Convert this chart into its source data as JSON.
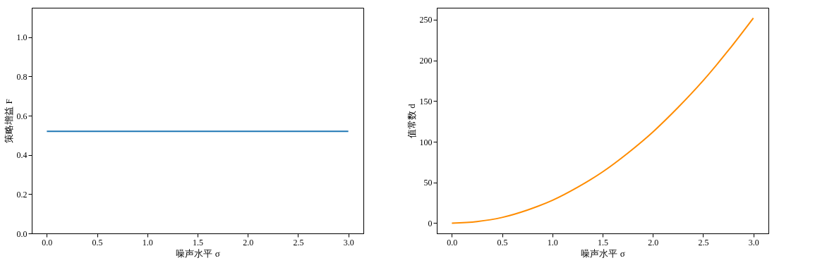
{
  "chart_data": [
    {
      "type": "line",
      "xlabel": "噪声水平 σ",
      "ylabel": "策略增益 F",
      "x": [
        0,
        0.5,
        1,
        1.5,
        2,
        2.5,
        3
      ],
      "series": [
        {
          "color": "#1f77b4",
          "values": [
            0.52,
            0.52,
            0.52,
            0.52,
            0.52,
            0.52,
            0.52
          ]
        }
      ],
      "xlim": [
        -0.15,
        3.15
      ],
      "xticks": [
        {
          "value": 0,
          "label": "0.0"
        },
        0.5,
        {
          "value": 1,
          "label": "1.0"
        },
        1.5,
        {
          "value": 2,
          "label": "2.0"
        },
        2.5,
        {
          "value": 3,
          "label": "3.0"
        }
      ],
      "ylim": [
        0,
        1.15
      ],
      "yticks": [
        {
          "value": 0,
          "label": "0.0"
        },
        0.2,
        0.4,
        0.6,
        0.8,
        {
          "value": 1,
          "label": "1.0"
        }
      ],
      "grid": false,
      "legend": false
    },
    {
      "type": "line",
      "xlabel": "噪声水平 σ",
      "ylabel": "值常数 d",
      "x": [
        0,
        0.25,
        0.5,
        0.75,
        1,
        1.25,
        1.5,
        1.75,
        2,
        2.25,
        2.5,
        2.75,
        3
      ],
      "series": [
        {
          "color": "#ff8c00",
          "values": [
            0,
            2,
            7,
            16,
            28,
            44,
            63,
            86,
            112,
            142,
            175,
            212,
            252
          ]
        }
      ],
      "xlim": [
        -0.15,
        3.15
      ],
      "xticks": [
        {
          "value": 0,
          "label": "0.0"
        },
        0.5,
        {
          "value": 1,
          "label": "1.0"
        },
        1.5,
        {
          "value": 2,
          "label": "2.0"
        },
        2.5,
        {
          "value": 3,
          "label": "3.0"
        }
      ],
      "ylim": [
        -12.6,
        264.6
      ],
      "yticks": [
        0,
        50,
        100,
        150,
        200,
        250
      ],
      "grid": false,
      "legend": false
    }
  ]
}
